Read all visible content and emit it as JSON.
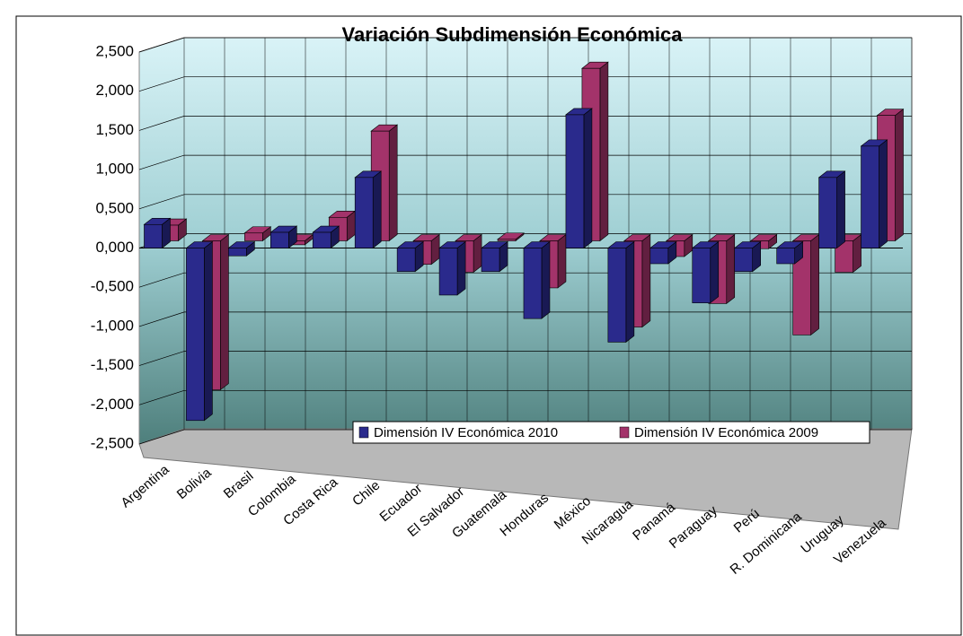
{
  "chart_data": {
    "type": "bar3d",
    "title": "Variación Subdimensión Económica",
    "categories": [
      "Argentina",
      "Bolivia",
      "Brasil",
      "Colombia",
      "Costa Rica",
      "Chile",
      "Ecuador",
      "El Salvador",
      "Guatemala",
      "Honduras",
      "México",
      "Nicaragua",
      "Panamá",
      "Paraguay",
      "Perú",
      "R. Dominicana",
      "Uruguay",
      "Venezuela"
    ],
    "series": [
      {
        "name": "Dimensión IV Económica 2010",
        "color": "#2a2a8c",
        "values": [
          0.3,
          -2.2,
          -0.1,
          0.2,
          0.2,
          0.9,
          -0.3,
          -0.6,
          -0.3,
          -0.9,
          1.7,
          -1.2,
          -0.2,
          -0.7,
          -0.3,
          -0.2,
          0.9,
          1.3
        ]
      },
      {
        "name": "Dimensión IV Económica 2009",
        "color": "#a3336a",
        "values": [
          0.2,
          -1.9,
          0.1,
          -0.05,
          0.3,
          1.4,
          -0.3,
          -0.4,
          0.02,
          -0.6,
          2.2,
          -1.1,
          -0.2,
          -0.8,
          -0.1,
          -1.2,
          -0.4,
          1.6
        ]
      }
    ],
    "ylim": [
      -2.5,
      2.5
    ],
    "yticks": [
      {
        "value": -2.5,
        "label": "-2,500"
      },
      {
        "value": -2,
        "label": "-2,000"
      },
      {
        "value": -1.5,
        "label": "-1,500"
      },
      {
        "value": -1,
        "label": "-1,000"
      },
      {
        "value": -0.5,
        "label": "-0,500"
      },
      {
        "value": 0,
        "label": "0,000"
      },
      {
        "value": 0.5,
        "label": "0,500"
      },
      {
        "value": 1,
        "label": "1,000"
      },
      {
        "value": 1.5,
        "label": "1,500"
      },
      {
        "value": 2,
        "label": "2,000"
      },
      {
        "value": 2.5,
        "label": "2,500"
      }
    ],
    "grid": true,
    "legend": "bottom-right"
  }
}
